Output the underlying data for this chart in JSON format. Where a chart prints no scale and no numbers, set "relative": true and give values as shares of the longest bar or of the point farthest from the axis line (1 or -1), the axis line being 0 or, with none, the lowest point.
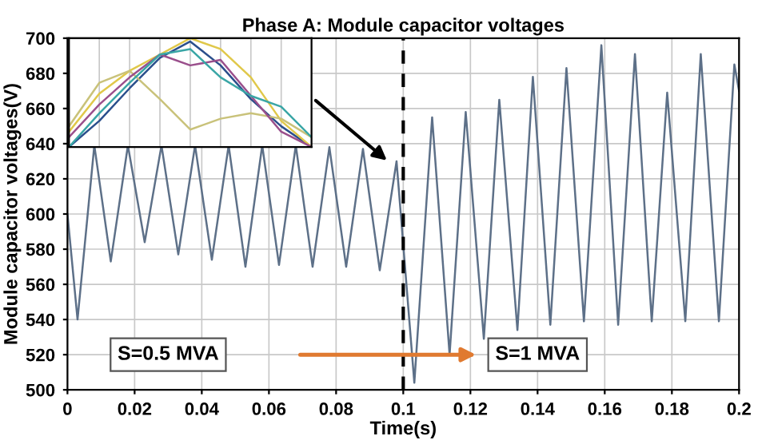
{
  "chart_data": [
    {
      "type": "line",
      "title": "Phase A: Module capacitor voltages",
      "xlabel": "Time(s)",
      "ylabel": "Module capacitor voltages(V)",
      "xlim": [
        0,
        0.2
      ],
      "xticks": [
        0,
        0.02,
        0.04,
        0.06,
        0.08,
        0.1,
        0.12,
        0.14,
        0.16,
        0.18,
        0.2
      ],
      "ylim": [
        500,
        700
      ],
      "yticks": [
        500,
        520,
        540,
        560,
        580,
        600,
        620,
        640,
        660,
        680,
        700
      ],
      "grid": true,
      "x": [
        0,
        0.003,
        0.008,
        0.0129,
        0.018,
        0.023,
        0.028,
        0.033,
        0.038,
        0.043,
        0.048,
        0.053,
        0.058,
        0.063,
        0.068,
        0.073,
        0.078,
        0.083,
        0.088,
        0.093,
        0.098,
        0.1033,
        0.1086,
        0.1138,
        0.1186,
        0.124,
        0.1286,
        0.134,
        0.1386,
        0.1438,
        0.1486,
        0.1538,
        0.159,
        0.164,
        0.169,
        0.174,
        0.1786,
        0.184,
        0.1886,
        0.194,
        0.1986,
        0.2
      ],
      "series": [
        {
          "color": "#5d7088",
          "values": [
            600,
            540,
            639,
            573,
            639,
            584,
            639,
            577,
            639,
            574,
            639,
            570,
            639,
            571,
            639,
            570,
            638,
            570,
            637,
            568,
            630,
            504,
            655,
            520,
            658,
            529,
            665,
            534,
            678,
            537,
            683,
            539,
            696,
            537,
            691,
            539,
            669,
            539,
            691,
            539,
            685,
            670
          ]
        }
      ],
      "ref_lines": [
        {
          "axis": "x",
          "value": 0.1,
          "color": "#000000",
          "line_style": "dashed"
        }
      ],
      "annotations": [
        "S=0.5 MVA",
        "S=1 MVA"
      ]
    },
    {
      "type": "line",
      "relative": true,
      "grid": "x",
      "tick_labels": false,
      "categories": [
        null,
        null,
        null,
        null,
        null,
        null,
        null,
        null,
        null
      ],
      "series": [
        {
          "color": "#2b4f8c",
          "values": [
            0,
            0.24,
            0.54,
            0.82,
            0.97,
            0.75,
            0.44,
            0.19,
            0
          ]
        },
        {
          "color": "#e0c84a",
          "values": [
            0.14,
            0.49,
            0.7,
            0.85,
            1.0,
            0.9,
            0.64,
            0.24,
            0
          ]
        },
        {
          "color": "#c9c27a",
          "values": [
            0.19,
            0.59,
            0.7,
            0.44,
            0.16,
            0.26,
            0.31,
            0.26,
            0.09
          ]
        },
        {
          "color": "#9a4f8c",
          "values": [
            0.09,
            0.39,
            0.64,
            0.85,
            0.75,
            0.8,
            0.47,
            0.14,
            0
          ]
        },
        {
          "color": "#3aa6a6",
          "values": [
            0,
            0.31,
            0.59,
            0.85,
            0.9,
            0.64,
            0.47,
            0.37,
            0.09
          ]
        }
      ]
    }
  ]
}
